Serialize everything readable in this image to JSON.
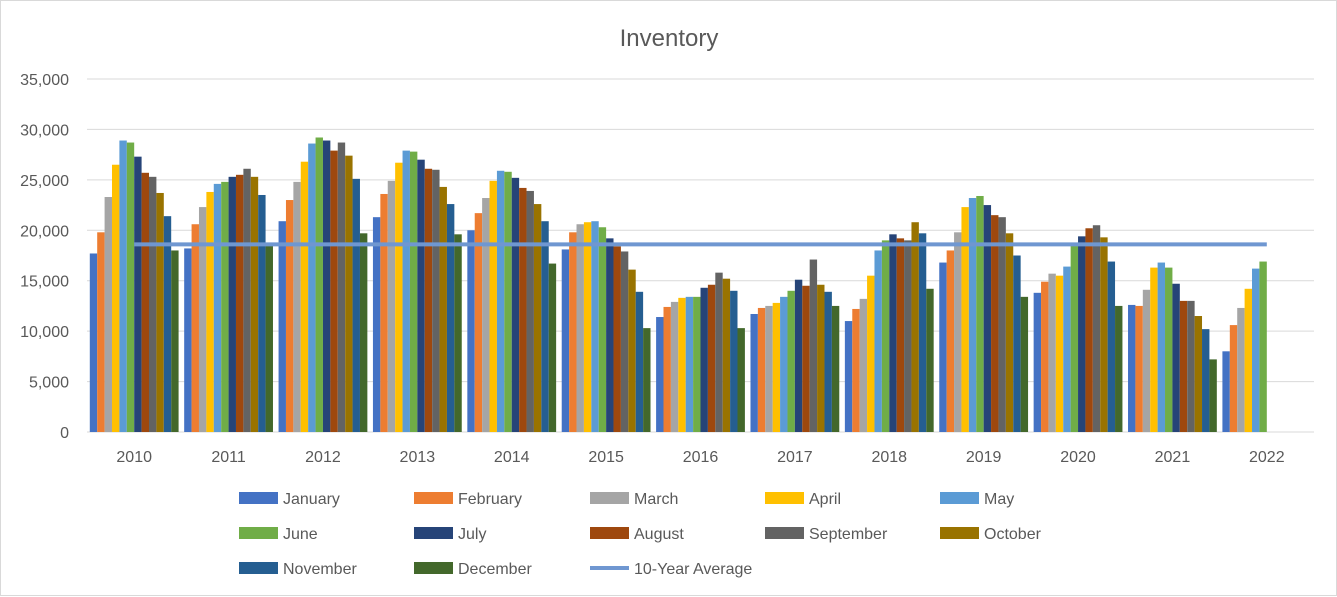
{
  "chart_data": {
    "type": "bar",
    "title": "Inventory",
    "xlabel": "",
    "ylabel": "",
    "ylim": [
      0,
      35000
    ],
    "y_ticks": [
      "0",
      "5,000",
      "10,000",
      "15,000",
      "20,000",
      "25,000",
      "30,000",
      "35,000"
    ],
    "y_tick_values": [
      0,
      5000,
      10000,
      15000,
      20000,
      25000,
      30000,
      35000
    ],
    "grid": true,
    "legend_position": "bottom",
    "categories": [
      "2010",
      "2011",
      "2012",
      "2013",
      "2014",
      "2015",
      "2016",
      "2017",
      "2018",
      "2019",
      "2020",
      "2021",
      "2022"
    ],
    "series": [
      {
        "name": "January",
        "color": "#4472C4",
        "values": [
          17700,
          18200,
          20900,
          21300,
          20000,
          18100,
          11400,
          11700,
          11000,
          16800,
          13800,
          12600,
          8000
        ]
      },
      {
        "name": "February",
        "color": "#ED7D31",
        "values": [
          19800,
          20600,
          23000,
          23600,
          21700,
          19800,
          12400,
          12300,
          12200,
          18000,
          14900,
          12500,
          10600
        ]
      },
      {
        "name": "March",
        "color": "#A5A5A5",
        "values": [
          23300,
          22300,
          24800,
          24900,
          23200,
          20600,
          12900,
          12500,
          13200,
          19800,
          15700,
          14100,
          12300
        ]
      },
      {
        "name": "April",
        "color": "#FFC000",
        "values": [
          26500,
          23800,
          26800,
          26700,
          24900,
          20800,
          13300,
          12800,
          15500,
          22300,
          15500,
          16300,
          14200
        ]
      },
      {
        "name": "May",
        "color": "#5B9BD5",
        "values": [
          28900,
          24600,
          28600,
          27900,
          25900,
          20900,
          13400,
          13400,
          18000,
          23200,
          16400,
          16800,
          16200
        ]
      },
      {
        "name": "June",
        "color": "#70AD47",
        "values": [
          28700,
          24800,
          29200,
          27800,
          25800,
          20300,
          13400,
          14000,
          19000,
          23400,
          18600,
          16300,
          16900
        ]
      },
      {
        "name": "July",
        "color": "#264478",
        "values": [
          27300,
          25300,
          28900,
          27000,
          25200,
          19200,
          14300,
          15100,
          19600,
          22500,
          19400,
          14700,
          null
        ]
      },
      {
        "name": "August",
        "color": "#9E480E",
        "values": [
          25700,
          25500,
          27900,
          26100,
          24200,
          18400,
          14600,
          14500,
          19200,
          21500,
          20200,
          13000,
          null
        ]
      },
      {
        "name": "September",
        "color": "#636363",
        "values": [
          25300,
          26100,
          28700,
          26000,
          23900,
          17900,
          15800,
          17100,
          19000,
          21300,
          20500,
          13000,
          null
        ]
      },
      {
        "name": "October",
        "color": "#997300",
        "values": [
          23700,
          25300,
          27400,
          24300,
          22600,
          16100,
          15200,
          14600,
          20800,
          19700,
          19300,
          11500,
          null
        ]
      },
      {
        "name": "November",
        "color": "#255E91",
        "values": [
          21400,
          23500,
          25100,
          22600,
          20900,
          13900,
          14000,
          13900,
          19700,
          17500,
          16900,
          10200,
          null
        ]
      },
      {
        "name": "December",
        "color": "#43682B",
        "values": [
          18000,
          18500,
          19700,
          19600,
          16700,
          10300,
          10300,
          12500,
          14200,
          13400,
          12500,
          7200,
          null
        ]
      }
    ],
    "reference_line": {
      "name": "10-Year Average",
      "color": "#6F97D1",
      "value": 18600
    }
  }
}
